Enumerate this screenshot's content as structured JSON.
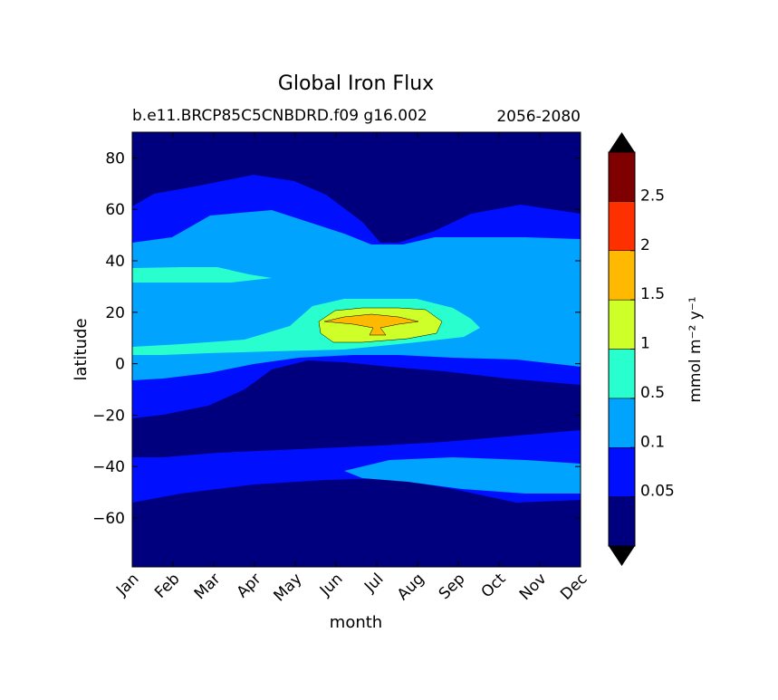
{
  "chart_data": {
    "type": "heatmap",
    "title": "Global Iron Flux",
    "subtitle_left": "b.e11.BRCP85C5CNBDRD.f09 g16.002",
    "subtitle_right": "2056-2080",
    "xlabel": "month",
    "ylabel": "latitude",
    "x_categories": [
      "Jan",
      "Feb",
      "Mar",
      "Apr",
      "May",
      "Jun",
      "Jul",
      "Aug",
      "Sep",
      "Oct",
      "Nov",
      "Dec"
    ],
    "xlim": [
      1,
      12
    ],
    "ylim": [
      -79,
      90
    ],
    "y_ticks": [
      80,
      60,
      40,
      20,
      0,
      -20,
      -40,
      -60
    ],
    "y_tick_labels": [
      "80",
      "60",
      "40",
      "20",
      "0",
      "−20",
      "−40",
      "−60"
    ],
    "colorbar": {
      "label": "mmol m⁻² y⁻¹",
      "levels": [
        0,
        0.05,
        0.1,
        0.5,
        1,
        1.5,
        2,
        2.5,
        3
      ],
      "tick_labels": [
        "0.05",
        "0.1",
        "0.5",
        "1",
        "1.5",
        "2",
        "2.5"
      ],
      "colors": [
        "#00007f",
        "#0010ff",
        "#00a4ff",
        "#29ffce",
        "#ceff29",
        "#ffb900",
        "#ff3000",
        "#7f0000"
      ],
      "extend": "both"
    },
    "note_bands": [
      {
        "range": "0.5-1",
        "month_start": "Jan",
        "month_end": "Sep",
        "lat_min": 4,
        "lat_max": 25
      },
      {
        "range": "1-1.5",
        "month_start": "Jun",
        "month_end": "Sep",
        "lat_min": 10,
        "lat_max": 19
      },
      {
        "range": "1.5-2",
        "month_start": "Jun",
        "month_end": "Aug",
        "lat_min": 14,
        "lat_max": 18
      }
    ]
  }
}
